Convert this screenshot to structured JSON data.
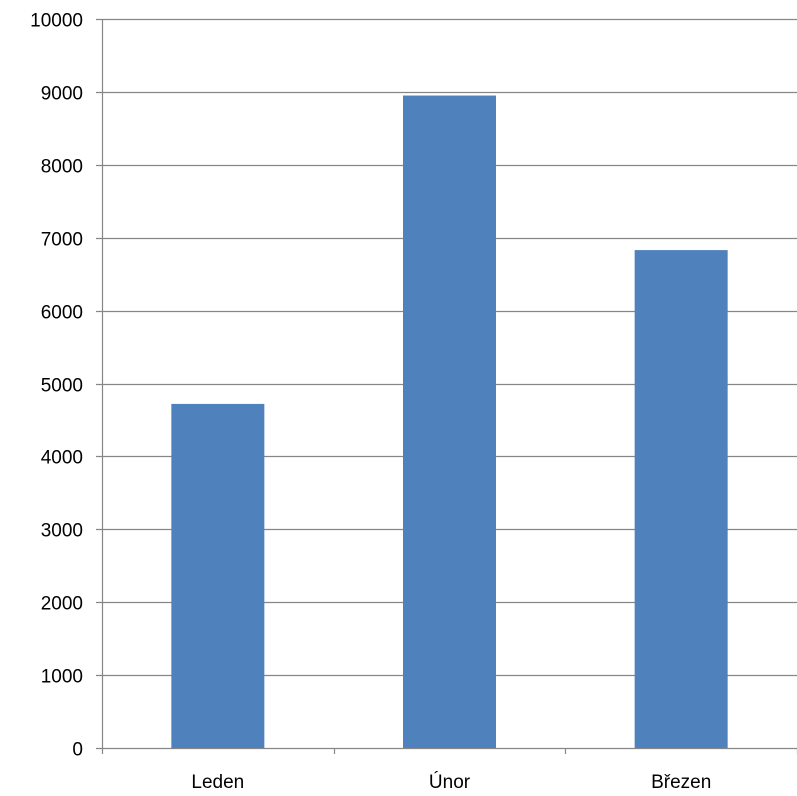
{
  "chart_data": {
    "type": "bar",
    "categories": [
      "Leden",
      "Únor",
      "Březen"
    ],
    "values": [
      4720,
      8950,
      6830
    ],
    "title": "",
    "xlabel": "",
    "ylabel": "",
    "ylim": [
      0,
      10000
    ],
    "yticks": [
      "0",
      "1000",
      "2000",
      "3000",
      "4000",
      "5000",
      "6000",
      "7000",
      "8000",
      "9000",
      "10000"
    ],
    "grid": true,
    "legend": "none",
    "colors": {
      "bar": "#4F81BD",
      "grid": "#868686",
      "axis": "#868686"
    }
  }
}
